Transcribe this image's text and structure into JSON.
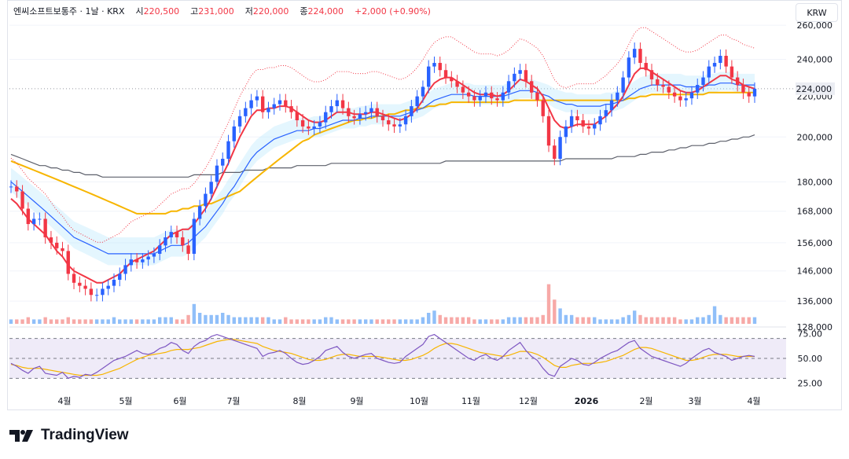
{
  "header": {
    "symbol": "엔씨소프트보통주",
    "interval": "1날",
    "exchange": "KRX",
    "open_label": "시",
    "open": "220,500",
    "high_label": "고",
    "high": "231,000",
    "low_label": "저",
    "low": "220,000",
    "close_label": "종",
    "close": "224,000",
    "change": "+2,000 (+0.90%)"
  },
  "currency": "KRW",
  "brand": "TradingView",
  "colors": {
    "up": "#26a69a",
    "down": "#f23645",
    "candle_up": "#2962ff",
    "candle_down": "#f23645",
    "grid": "#f0f3fa",
    "ma_fast": "#f23645",
    "ma_slow": "#2962ff",
    "ma_long": "#f7b500",
    "ma_200": "#5d606b",
    "rsi": "#7e57c2"
  },
  "chart_data": {
    "type": "candlestick",
    "title": "엔씨소프트보통주 · 1날 · KRX",
    "y_axis": {
      "scale": "log",
      "ticks": [
        260000,
        240000,
        224000,
        220000,
        200000,
        180000,
        168000,
        156000,
        146000,
        136000,
        128000
      ],
      "tick_labels": [
        "260,000",
        "240,000",
        "224,000",
        "220,000",
        "200,000",
        "180,000",
        "168,000",
        "156,000",
        "146,000",
        "136,000",
        "128,000"
      ],
      "last_price_label": "224,000"
    },
    "x_axis": {
      "labels": [
        "4월",
        "5월",
        "6월",
        "7월",
        "8월",
        "9월",
        "10월",
        "11월",
        "12월",
        "2026",
        "2월",
        "3월",
        "4월"
      ]
    },
    "price_series": [
      178,
      176,
      169,
      163,
      165,
      165,
      158,
      156,
      154,
      153,
      145,
      142,
      141,
      140,
      138,
      138,
      140,
      141,
      143,
      145,
      148,
      150,
      149,
      150,
      151,
      152,
      155,
      158,
      160,
      158,
      155,
      152,
      165,
      170,
      175,
      180,
      187,
      190,
      198,
      205,
      210,
      214,
      218,
      220,
      212,
      214,
      216,
      218,
      215,
      212,
      208,
      205,
      204,
      205,
      207,
      212,
      215,
      218,
      214,
      210,
      209,
      211,
      212,
      214,
      210,
      208,
      206,
      205,
      206,
      210,
      215,
      220,
      225,
      236,
      238,
      234,
      230,
      228,
      225,
      222,
      220,
      218,
      220,
      222,
      219,
      218,
      222,
      228,
      232,
      234,
      228,
      222,
      218,
      210,
      196,
      190,
      200,
      205,
      210,
      208,
      205,
      204,
      206,
      210,
      213,
      218,
      222,
      230,
      241,
      246,
      238,
      234,
      229,
      226,
      225,
      222,
      220,
      218,
      219,
      222,
      226,
      230,
      236,
      238,
      242,
      236,
      230,
      226,
      222,
      220,
      224
    ],
    "ma_fast": [
      173,
      171,
      168,
      165,
      163,
      161,
      159,
      156,
      153,
      151,
      148,
      146,
      145,
      144,
      143,
      142,
      142,
      143,
      144,
      145,
      147,
      149,
      150,
      151,
      152,
      153,
      155,
      157,
      159,
      160,
      161,
      161,
      163,
      166,
      169,
      173,
      178,
      183,
      188,
      194,
      200,
      205,
      210,
      213,
      213,
      214,
      214,
      215,
      215,
      214,
      212,
      210,
      208,
      207,
      207,
      208,
      210,
      212,
      212,
      212,
      211,
      211,
      211,
      212,
      212,
      211,
      210,
      209,
      208,
      209,
      211,
      214,
      218,
      223,
      227,
      229,
      230,
      230,
      228,
      226,
      224,
      222,
      221,
      221,
      221,
      220,
      221,
      223,
      226,
      229,
      228,
      226,
      224,
      220,
      214,
      208,
      205,
      204,
      205,
      206,
      206,
      206,
      206,
      208,
      210,
      213,
      216,
      220,
      226,
      232,
      235,
      235,
      233,
      231,
      229,
      227,
      225,
      223,
      222,
      222,
      223,
      225,
      227,
      229,
      231,
      231,
      229,
      228,
      226,
      225,
      224
    ],
    "ma_slow": [
      180,
      178,
      176,
      174,
      172,
      170,
      168,
      166,
      164,
      162,
      160,
      158,
      157,
      156,
      155,
      154,
      153,
      152,
      152,
      152,
      152,
      152,
      152,
      152,
      152,
      152,
      153,
      154,
      155,
      155,
      155,
      156,
      158,
      160,
      162,
      165,
      168,
      171,
      175,
      178,
      182,
      186,
      190,
      193,
      195,
      197,
      199,
      200,
      201,
      202,
      203,
      203,
      203,
      204,
      204,
      205,
      206,
      207,
      208,
      208,
      208,
      209,
      209,
      210,
      210,
      210,
      210,
      210,
      210,
      211,
      212,
      213,
      214,
      216,
      218,
      219,
      220,
      221,
      221,
      221,
      221,
      220,
      220,
      220,
      220,
      220,
      220,
      221,
      222,
      223,
      223,
      223,
      222,
      221,
      220,
      218,
      217,
      216,
      216,
      215,
      215,
      215,
      215,
      215,
      216,
      216,
      217,
      218,
      220,
      222,
      224,
      225,
      226,
      226,
      226,
      226,
      226,
      226,
      225,
      225,
      225,
      225,
      226,
      226,
      227,
      227,
      227,
      226,
      226,
      226,
      226
    ],
    "ma_long": [
      189,
      188,
      187,
      186,
      185,
      184,
      183,
      182,
      181,
      180,
      179,
      178,
      177,
      176,
      175,
      174,
      173,
      172,
      171,
      170,
      169,
      168,
      167,
      167,
      167,
      167,
      167,
      167,
      168,
      168,
      169,
      169,
      170,
      170,
      171,
      171,
      172,
      173,
      174,
      175,
      176,
      178,
      180,
      182,
      184,
      186,
      188,
      190,
      192,
      194,
      196,
      198,
      199,
      201,
      202,
      203,
      204,
      205,
      206,
      207,
      208,
      208,
      209,
      209,
      210,
      210,
      211,
      211,
      212,
      213,
      213,
      214,
      214,
      215,
      215,
      216,
      216,
      217,
      217,
      217,
      217,
      217,
      217,
      217,
      217,
      217,
      217,
      217,
      218,
      218,
      218,
      218,
      218,
      218,
      218,
      218,
      218,
      218,
      218,
      218,
      218,
      218,
      218,
      218,
      218,
      218,
      218,
      218,
      219,
      219,
      220,
      220,
      221,
      221,
      221,
      221,
      221,
      221,
      221,
      221,
      221,
      221,
      222,
      222,
      222,
      222,
      222,
      222,
      222,
      222,
      222
    ],
    "ma_200": [
      192,
      191,
      190,
      189,
      188,
      187,
      187,
      186,
      186,
      185,
      185,
      184,
      184,
      183,
      183,
      183,
      182,
      182,
      182,
      182,
      182,
      182,
      182,
      182,
      182,
      182,
      182,
      182,
      182,
      182,
      182,
      182,
      183,
      183,
      183,
      183,
      183,
      184,
      184,
      184,
      184,
      185,
      185,
      185,
      185,
      186,
      186,
      186,
      186,
      186,
      187,
      187,
      187,
      187,
      187,
      187,
      188,
      188,
      188,
      188,
      188,
      188,
      188,
      188,
      188,
      188,
      188,
      188,
      188,
      188,
      188,
      188,
      188,
      188,
      188,
      188,
      189,
      189,
      189,
      189,
      189,
      189,
      189,
      189,
      189,
      189,
      189,
      189,
      189,
      189,
      189,
      189,
      189,
      189,
      189,
      189,
      189,
      190,
      190,
      190,
      190,
      190,
      190,
      190,
      190,
      190,
      191,
      191,
      191,
      191,
      192,
      192,
      193,
      193,
      193,
      194,
      194,
      195,
      195,
      196,
      196,
      196,
      197,
      197,
      198,
      198,
      199,
      199,
      200,
      200,
      201
    ],
    "rsi": [
      45,
      42,
      38,
      35,
      40,
      42,
      35,
      34,
      33,
      36,
      30,
      32,
      31,
      34,
      33,
      36,
      40,
      44,
      48,
      50,
      52,
      55,
      58,
      55,
      54,
      56,
      60,
      62,
      66,
      64,
      58,
      55,
      62,
      66,
      68,
      72,
      74,
      72,
      70,
      68,
      66,
      64,
      62,
      60,
      52,
      55,
      56,
      58,
      55,
      50,
      46,
      44,
      45,
      48,
      52,
      58,
      60,
      62,
      56,
      52,
      50,
      52,
      54,
      55,
      50,
      48,
      46,
      45,
      46,
      52,
      56,
      60,
      64,
      72,
      74,
      70,
      66,
      62,
      58,
      54,
      50,
      48,
      52,
      54,
      50,
      48,
      52,
      58,
      62,
      66,
      58,
      52,
      48,
      40,
      34,
      32,
      42,
      46,
      50,
      48,
      44,
      43,
      46,
      50,
      53,
      56,
      58,
      62,
      66,
      68,
      60,
      56,
      52,
      50,
      48,
      46,
      44,
      42,
      45,
      50,
      54,
      58,
      60,
      56,
      54,
      52,
      48,
      50,
      52,
      53,
      52
    ],
    "rsi_signal": [
      44,
      43,
      41,
      40,
      40,
      40,
      39,
      38,
      37,
      36,
      35,
      34,
      33,
      33,
      33,
      33,
      34,
      36,
      38,
      40,
      43,
      46,
      49,
      51,
      53,
      54,
      55,
      56,
      58,
      59,
      59,
      59,
      60,
      61,
      63,
      65,
      67,
      68,
      69,
      69,
      68,
      67,
      66,
      65,
      62,
      60,
      58,
      57,
      56,
      55,
      53,
      51,
      49,
      48,
      48,
      49,
      51,
      53,
      54,
      54,
      53,
      52,
      52,
      52,
      52,
      51,
      50,
      49,
      48,
      48,
      49,
      51,
      53,
      56,
      60,
      63,
      65,
      65,
      64,
      62,
      60,
      58,
      56,
      55,
      54,
      53,
      52,
      53,
      55,
      57,
      57,
      56,
      54,
      51,
      47,
      43,
      41,
      41,
      43,
      44,
      45,
      45,
      45,
      46,
      47,
      49,
      51,
      53,
      56,
      59,
      61,
      61,
      60,
      58,
      56,
      54,
      52,
      50,
      48,
      48,
      49,
      51,
      53,
      54,
      54,
      54,
      53,
      52,
      52,
      52,
      52
    ],
    "rsi_ticks": [
      "75.00",
      "50.00",
      "25.00"
    ],
    "volume": [
      2,
      2,
      2,
      3,
      2,
      2,
      3,
      2,
      2,
      2,
      3,
      2,
      2,
      2,
      2,
      2,
      2,
      2,
      3,
      2,
      2,
      2,
      2,
      2,
      2,
      2,
      3,
      3,
      3,
      2,
      2,
      4,
      9,
      5,
      4,
      4,
      4,
      5,
      4,
      3,
      3,
      3,
      3,
      3,
      3,
      3,
      2,
      2,
      3,
      2,
      2,
      2,
      2,
      2,
      2,
      3,
      3,
      2,
      2,
      2,
      2,
      2,
      2,
      2,
      2,
      2,
      2,
      2,
      2,
      2,
      2,
      2,
      3,
      5,
      6,
      4,
      3,
      3,
      3,
      3,
      3,
      2,
      2,
      2,
      2,
      2,
      2,
      3,
      3,
      3,
      3,
      3,
      3,
      4,
      18,
      11,
      7,
      4,
      4,
      3,
      3,
      3,
      3,
      2,
      2,
      2,
      2,
      3,
      4,
      6,
      4,
      3,
      3,
      3,
      3,
      3,
      3,
      2,
      2,
      2,
      3,
      3,
      4,
      8,
      4,
      3,
      3,
      3,
      3,
      3,
      3
    ]
  }
}
